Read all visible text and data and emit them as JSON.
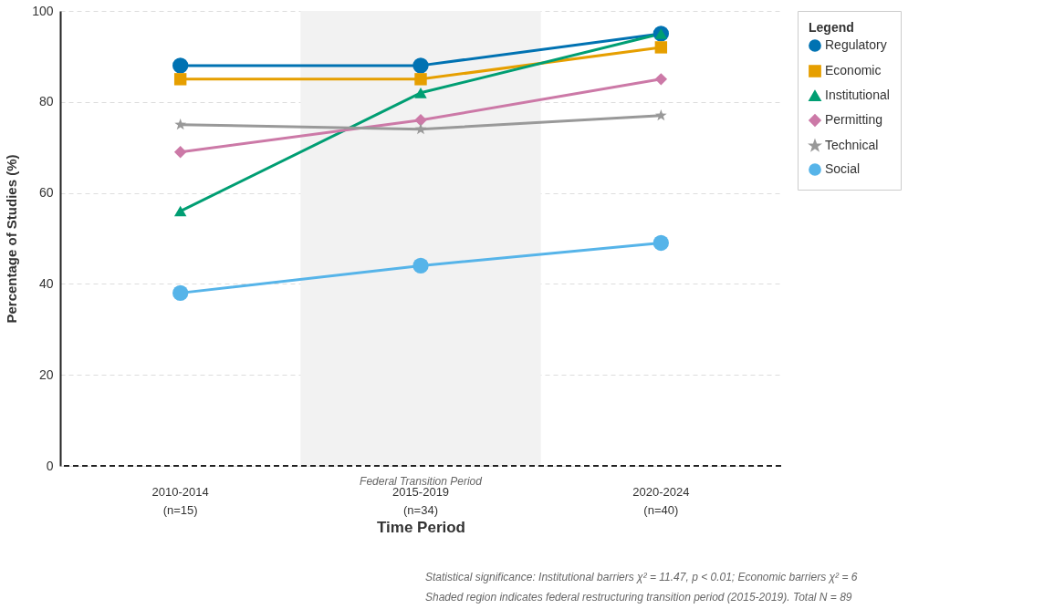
{
  "chart_data": {
    "type": "line",
    "xlabel": "Time Period",
    "ylabel": "Percentage of Studies (%)",
    "legend_title": "Legend",
    "categories": [
      "2010-2014\n(n=15)",
      "2015-2019\n(n=34)",
      "2020-2024\n(n=40)"
    ],
    "ylim": [
      0,
      100
    ],
    "yticks": [
      0,
      20,
      40,
      60,
      80,
      100
    ],
    "grid": "y",
    "legend": "top right",
    "line_style": "solid",
    "series": [
      {
        "name": "Regulatory",
        "color": "#0072b2",
        "marker": "circle",
        "values": [
          88,
          88,
          95
        ]
      },
      {
        "name": "Economic",
        "color": "#e69f00",
        "marker": "square",
        "values": [
          85,
          85,
          92
        ]
      },
      {
        "name": "Institutional",
        "color": "#009e73",
        "marker": "triangle",
        "values": [
          56,
          82,
          95
        ]
      },
      {
        "name": "Permitting",
        "color": "#cc79a7",
        "marker": "diamond",
        "values": [
          69,
          76,
          85
        ]
      },
      {
        "name": "Technical",
        "color": "#999999",
        "marker": "star",
        "values": [
          75,
          74,
          77
        ]
      },
      {
        "name": "Social",
        "color": "#56b4e9",
        "marker": "circle",
        "values": [
          38,
          44,
          49
        ]
      }
    ],
    "bands": [
      {
        "axis": "x",
        "from": "2015-2019\n(n=34)",
        "to": "2015-2019\n(n=34)",
        "label": "Federal Transition Period",
        "color": "#f2f2f2"
      }
    ],
    "ref_lines": [
      {
        "axis": "y",
        "value": 0,
        "color": "#222222",
        "line_style": "dashed"
      }
    ],
    "annotations": [
      "Statistical significance: Institutional barriers χ² = 11.47, p < 0.01; Economic barriers χ² = 6",
      "Shaded region indicates federal restructuring transition period (2015-2019). Total N = 89"
    ]
  }
}
